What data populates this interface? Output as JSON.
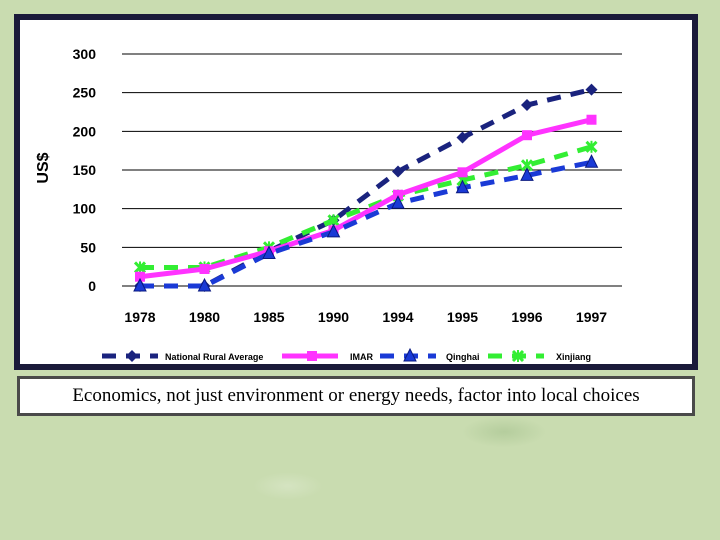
{
  "chart_data": {
    "type": "line",
    "ylabel": "US$",
    "ylim": [
      0,
      300
    ],
    "yticks": [
      "300",
      "250",
      "200",
      "150",
      "100",
      "50",
      "0"
    ],
    "categories": [
      "1978",
      "1980",
      "1985",
      "1990",
      "1994",
      "1995",
      "1996",
      "1997"
    ],
    "series": [
      {
        "name": "National Rural Average",
        "color": "#1a237e",
        "style": "dashed",
        "marker": "diamond",
        "values": [
          0,
          0,
          45,
          85,
          148,
          192,
          234,
          254
        ]
      },
      {
        "name": "IMAR",
        "color": "#ff33ff",
        "style": "solid",
        "marker": "square",
        "values": [
          12,
          22,
          45,
          72,
          118,
          147,
          195,
          215
        ]
      },
      {
        "name": "Qinghai",
        "color": "#1a3ad6",
        "style": "dashed",
        "marker": "triangle",
        "values": [
          0,
          0,
          42,
          70,
          107,
          127,
          143,
          160
        ]
      },
      {
        "name": "Xinjiang",
        "color": "#33ee33",
        "style": "dashed",
        "marker": "star",
        "values": [
          24,
          24,
          50,
          85,
          117,
          137,
          156,
          180
        ]
      }
    ]
  },
  "caption": "Economics, not just environment or energy needs, factor into local choices"
}
